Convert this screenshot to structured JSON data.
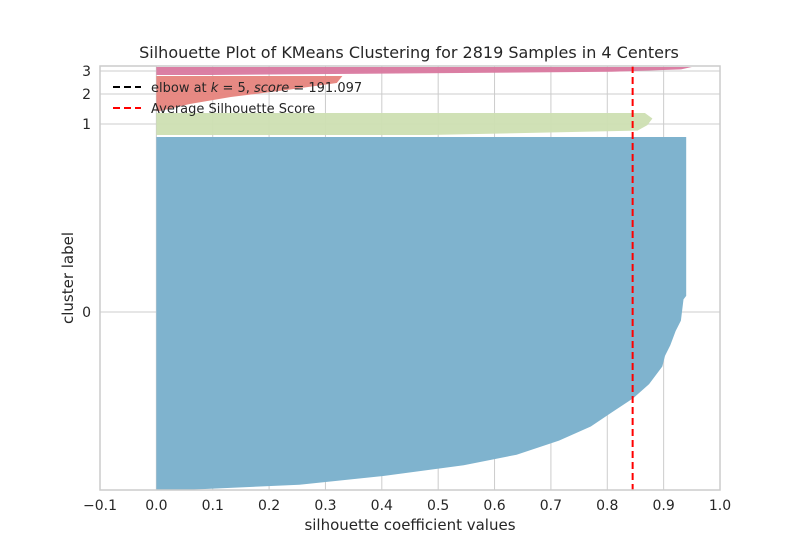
{
  "chart_data": {
    "type": "silhouette",
    "title": "Silhouette Plot of KMeans Clustering for 2819 Samples in 4 Centers",
    "xlabel": "silhouette coefficient values",
    "ylabel": "cluster label",
    "xlim": [
      -0.1,
      1.0
    ],
    "xticks": [
      "−0.1",
      "0.0",
      "0.1",
      "0.2",
      "0.3",
      "0.4",
      "0.5",
      "0.6",
      "0.7",
      "0.8",
      "0.9",
      "1.0"
    ],
    "yticks": [
      "0",
      "1",
      "2",
      "3"
    ],
    "average_silhouette_score": 0.845,
    "clusters": [
      {
        "label": "0",
        "color": "#7fb3ce",
        "max_value": 0.94,
        "min_value": 0.0
      },
      {
        "label": "1",
        "color": "#cddfb2",
        "max_value": 0.88,
        "min_value": 0.0
      },
      {
        "label": "2",
        "color": "#e6837c",
        "max_value": 0.33,
        "min_value": 0.0
      },
      {
        "label": "3",
        "color": "#d9789f",
        "max_value": 0.95,
        "min_value": 0.0
      }
    ],
    "legend": {
      "placement": "top-left",
      "entries": [
        {
          "label_prefix": "elbow at ",
          "k_var": "k",
          "k_eq": " = 5, ",
          "score_var": "score",
          "score_eq": " = 191.097",
          "color": "#000000",
          "style": "dashed"
        },
        {
          "label": "Average Silhouette Score",
          "color": "#ff0000",
          "style": "dashed"
        }
      ]
    },
    "grid": true
  }
}
